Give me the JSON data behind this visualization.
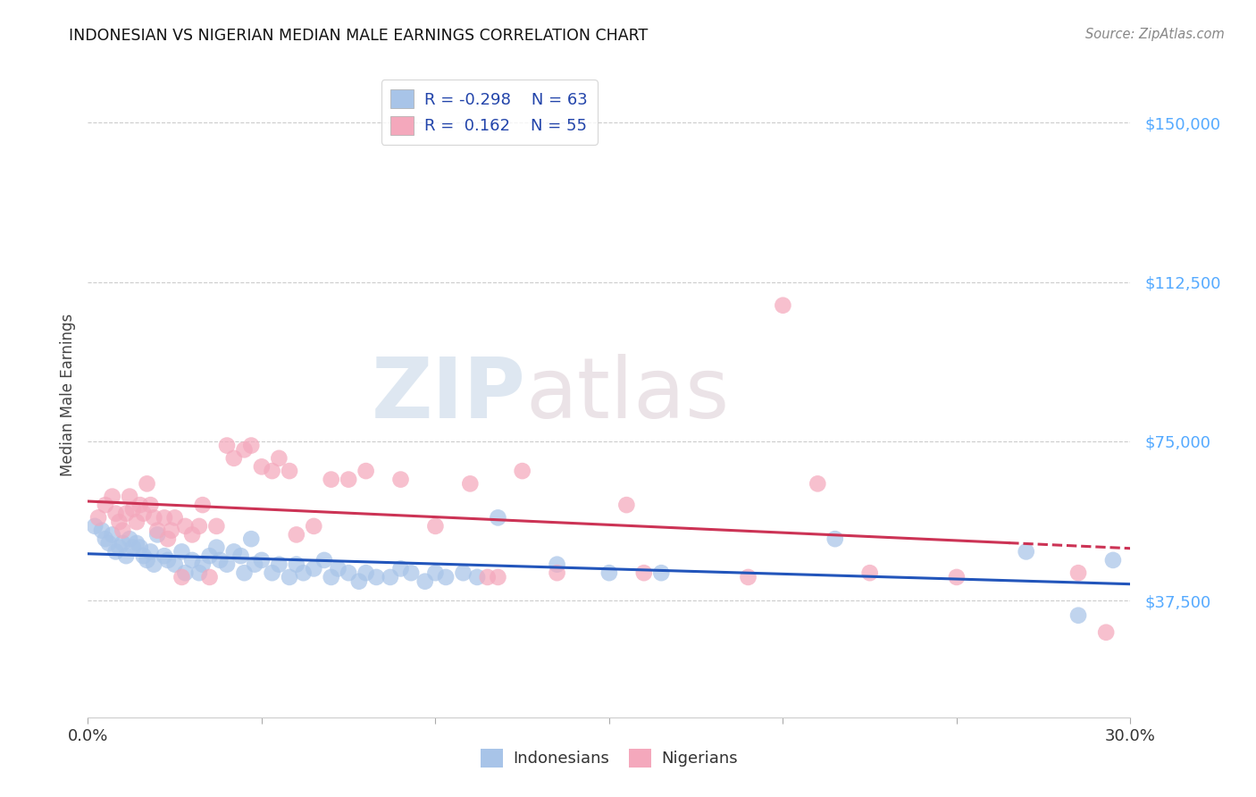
{
  "title": "INDONESIAN VS NIGERIAN MEDIAN MALE EARNINGS CORRELATION CHART",
  "source": "Source: ZipAtlas.com",
  "ylabel": "Median Male Earnings",
  "yticks": [
    37500,
    75000,
    112500,
    150000
  ],
  "ytick_labels": [
    "$37,500",
    "$75,000",
    "$112,500",
    "$150,000"
  ],
  "xmin": 0.0,
  "xmax": 0.3,
  "ymin": 10000,
  "ymax": 162000,
  "watermark_zip": "ZIP",
  "watermark_atlas": "atlas",
  "indonesian_color": "#a8c4e8",
  "nigerian_color": "#f4a8bc",
  "indonesian_line_color": "#2255bb",
  "nigerian_line_color": "#cc3355",
  "background_color": "#ffffff",
  "indonesian_points": [
    [
      0.002,
      55000
    ],
    [
      0.004,
      54000
    ],
    [
      0.005,
      52000
    ],
    [
      0.006,
      51000
    ],
    [
      0.007,
      53000
    ],
    [
      0.008,
      49000
    ],
    [
      0.009,
      50000
    ],
    [
      0.01,
      51000
    ],
    [
      0.011,
      48000
    ],
    [
      0.012,
      52000
    ],
    [
      0.013,
      50000
    ],
    [
      0.014,
      51000
    ],
    [
      0.015,
      50000
    ],
    [
      0.016,
      48000
    ],
    [
      0.017,
      47000
    ],
    [
      0.018,
      49000
    ],
    [
      0.019,
      46000
    ],
    [
      0.02,
      53000
    ],
    [
      0.022,
      48000
    ],
    [
      0.023,
      47000
    ],
    [
      0.025,
      46000
    ],
    [
      0.027,
      49000
    ],
    [
      0.028,
      44000
    ],
    [
      0.03,
      47000
    ],
    [
      0.032,
      44000
    ],
    [
      0.033,
      46000
    ],
    [
      0.035,
      48000
    ],
    [
      0.037,
      50000
    ],
    [
      0.038,
      47000
    ],
    [
      0.04,
      46000
    ],
    [
      0.042,
      49000
    ],
    [
      0.044,
      48000
    ],
    [
      0.045,
      44000
    ],
    [
      0.047,
      52000
    ],
    [
      0.048,
      46000
    ],
    [
      0.05,
      47000
    ],
    [
      0.053,
      44000
    ],
    [
      0.055,
      46000
    ],
    [
      0.058,
      43000
    ],
    [
      0.06,
      46000
    ],
    [
      0.062,
      44000
    ],
    [
      0.065,
      45000
    ],
    [
      0.068,
      47000
    ],
    [
      0.07,
      43000
    ],
    [
      0.072,
      45000
    ],
    [
      0.075,
      44000
    ],
    [
      0.078,
      42000
    ],
    [
      0.08,
      44000
    ],
    [
      0.083,
      43000
    ],
    [
      0.087,
      43000
    ],
    [
      0.09,
      45000
    ],
    [
      0.093,
      44000
    ],
    [
      0.097,
      42000
    ],
    [
      0.1,
      44000
    ],
    [
      0.103,
      43000
    ],
    [
      0.108,
      44000
    ],
    [
      0.112,
      43000
    ],
    [
      0.118,
      57000
    ],
    [
      0.135,
      46000
    ],
    [
      0.15,
      44000
    ],
    [
      0.165,
      44000
    ],
    [
      0.215,
      52000
    ],
    [
      0.27,
      49000
    ],
    [
      0.285,
      34000
    ],
    [
      0.295,
      47000
    ]
  ],
  "nigerian_points": [
    [
      0.003,
      57000
    ],
    [
      0.005,
      60000
    ],
    [
      0.007,
      62000
    ],
    [
      0.008,
      58000
    ],
    [
      0.009,
      56000
    ],
    [
      0.01,
      54000
    ],
    [
      0.011,
      58000
    ],
    [
      0.012,
      62000
    ],
    [
      0.013,
      59000
    ],
    [
      0.014,
      56000
    ],
    [
      0.015,
      60000
    ],
    [
      0.016,
      58000
    ],
    [
      0.017,
      65000
    ],
    [
      0.018,
      60000
    ],
    [
      0.019,
      57000
    ],
    [
      0.02,
      54000
    ],
    [
      0.022,
      57000
    ],
    [
      0.023,
      52000
    ],
    [
      0.024,
      54000
    ],
    [
      0.025,
      57000
    ],
    [
      0.027,
      43000
    ],
    [
      0.028,
      55000
    ],
    [
      0.03,
      53000
    ],
    [
      0.032,
      55000
    ],
    [
      0.033,
      60000
    ],
    [
      0.035,
      43000
    ],
    [
      0.037,
      55000
    ],
    [
      0.04,
      74000
    ],
    [
      0.042,
      71000
    ],
    [
      0.045,
      73000
    ],
    [
      0.047,
      74000
    ],
    [
      0.05,
      69000
    ],
    [
      0.053,
      68000
    ],
    [
      0.055,
      71000
    ],
    [
      0.058,
      68000
    ],
    [
      0.06,
      53000
    ],
    [
      0.065,
      55000
    ],
    [
      0.07,
      66000
    ],
    [
      0.075,
      66000
    ],
    [
      0.08,
      68000
    ],
    [
      0.09,
      66000
    ],
    [
      0.1,
      55000
    ],
    [
      0.11,
      65000
    ],
    [
      0.115,
      43000
    ],
    [
      0.118,
      43000
    ],
    [
      0.125,
      68000
    ],
    [
      0.135,
      44000
    ],
    [
      0.155,
      60000
    ],
    [
      0.16,
      44000
    ],
    [
      0.19,
      43000
    ],
    [
      0.2,
      107000
    ],
    [
      0.21,
      65000
    ],
    [
      0.225,
      44000
    ],
    [
      0.25,
      43000
    ],
    [
      0.285,
      44000
    ],
    [
      0.293,
      30000
    ]
  ]
}
